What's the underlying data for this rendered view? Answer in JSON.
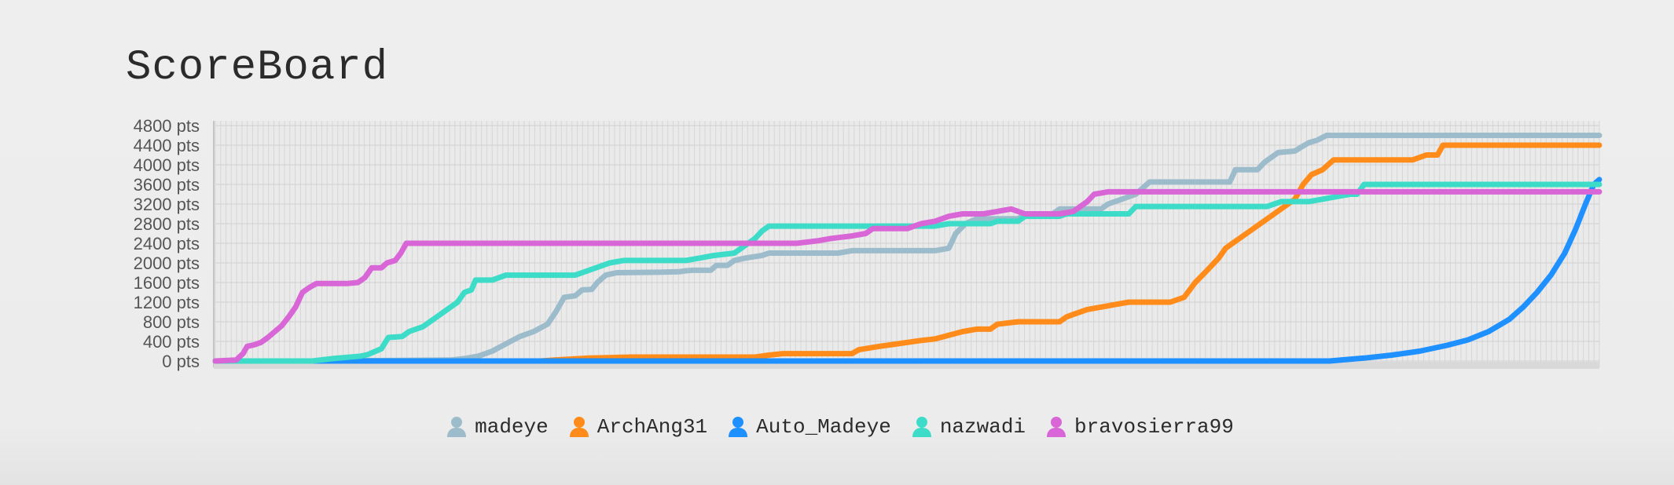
{
  "page": {
    "title": "ScoreBoard"
  },
  "chart_data": {
    "type": "line",
    "title": "ScoreBoard",
    "xlabel": "",
    "ylabel": "",
    "ylim": [
      0,
      4800
    ],
    "xlim": [
      0,
      100
    ],
    "y_ticks": [
      "0 pts",
      "400 pts",
      "800 pts",
      "1200 pts",
      "1600 pts",
      "2000 pts",
      "2400 pts",
      "2800 pts",
      "3200 pts",
      "3600 pts",
      "4000 pts",
      "4400 pts",
      "4800 pts"
    ],
    "y_tick_values": [
      0,
      400,
      800,
      1200,
      1600,
      2000,
      2400,
      2800,
      3200,
      3600,
      4000,
      4400,
      4800
    ],
    "grid": true,
    "legend_position": "bottom",
    "series": [
      {
        "name": "madeye",
        "color": "#9dbccb",
        "icon": "user-icon",
        "points": [
          [
            0,
            0
          ],
          [
            7.8,
            0
          ],
          [
            17,
            20
          ],
          [
            18,
            50
          ],
          [
            19,
            100
          ],
          [
            20,
            200
          ],
          [
            21,
            350
          ],
          [
            22,
            500
          ],
          [
            23,
            600
          ],
          [
            24,
            750
          ],
          [
            24.6,
            1000
          ],
          [
            25.2,
            1300
          ],
          [
            26,
            1330
          ],
          [
            26.5,
            1450
          ],
          [
            27.2,
            1460
          ],
          [
            27.6,
            1600
          ],
          [
            28.2,
            1750
          ],
          [
            29,
            1800
          ],
          [
            32,
            1810
          ],
          [
            33.5,
            1820
          ],
          [
            34,
            1840
          ],
          [
            34.5,
            1850
          ],
          [
            35.8,
            1850
          ],
          [
            36.2,
            1950
          ],
          [
            37,
            1950
          ],
          [
            37.5,
            2050
          ],
          [
            38.3,
            2100
          ],
          [
            39.5,
            2150
          ],
          [
            40,
            2200
          ],
          [
            45,
            2200
          ],
          [
            46,
            2250
          ],
          [
            52,
            2250
          ],
          [
            53,
            2300
          ],
          [
            53.5,
            2600
          ],
          [
            54.2,
            2800
          ],
          [
            55,
            2900
          ],
          [
            58,
            2900
          ],
          [
            58.5,
            3000
          ],
          [
            60.5,
            3000
          ],
          [
            61,
            3100
          ],
          [
            64,
            3100
          ],
          [
            64.5,
            3200
          ],
          [
            65.5,
            3300
          ],
          [
            66.5,
            3400
          ],
          [
            67.5,
            3650
          ],
          [
            70,
            3650
          ],
          [
            70.5,
            3650
          ],
          [
            73.3,
            3650
          ],
          [
            73.7,
            3900
          ],
          [
            75.3,
            3900
          ],
          [
            75.8,
            4050
          ],
          [
            76.8,
            4250
          ],
          [
            78,
            4280
          ],
          [
            78.4,
            4350
          ],
          [
            79,
            4450
          ],
          [
            79.6,
            4500
          ],
          [
            80.3,
            4600
          ],
          [
            81,
            4600
          ],
          [
            100,
            4600
          ]
        ]
      },
      {
        "name": "ArchAng31",
        "color": "#ff8c1a",
        "icon": "user-icon",
        "points": [
          [
            0,
            0
          ],
          [
            23.5,
            0
          ],
          [
            24.5,
            20
          ],
          [
            27,
            60
          ],
          [
            30,
            80
          ],
          [
            39,
            80
          ],
          [
            40,
            120
          ],
          [
            41,
            150
          ],
          [
            46,
            150
          ],
          [
            46.5,
            230
          ],
          [
            48,
            300
          ],
          [
            50,
            380
          ],
          [
            51,
            420
          ],
          [
            52,
            450
          ],
          [
            54,
            600
          ],
          [
            55,
            650
          ],
          [
            56,
            650
          ],
          [
            56.5,
            750
          ],
          [
            58,
            800
          ],
          [
            61,
            800
          ],
          [
            61.5,
            900
          ],
          [
            62,
            950
          ],
          [
            63,
            1050
          ],
          [
            64,
            1100
          ],
          [
            65,
            1150
          ],
          [
            66,
            1200
          ],
          [
            69,
            1200
          ],
          [
            70,
            1300
          ],
          [
            70.8,
            1600
          ],
          [
            71.5,
            1800
          ],
          [
            72.5,
            2100
          ],
          [
            73,
            2300
          ],
          [
            73.5,
            2400
          ],
          [
            74,
            2500
          ],
          [
            75,
            2700
          ],
          [
            76,
            2900
          ],
          [
            77,
            3100
          ],
          [
            78,
            3300
          ],
          [
            78.6,
            3600
          ],
          [
            79.2,
            3800
          ],
          [
            80,
            3900
          ],
          [
            80.4,
            4000
          ],
          [
            80.8,
            4100
          ],
          [
            83,
            4100
          ],
          [
            86.5,
            4100
          ],
          [
            87.5,
            4200
          ],
          [
            88.3,
            4200
          ],
          [
            88.7,
            4400
          ],
          [
            100,
            4400
          ]
        ]
      },
      {
        "name": "Auto_Madeye",
        "color": "#1e90ff",
        "icon": "user-icon",
        "points": [
          [
            0,
            0
          ],
          [
            80.5,
            0
          ],
          [
            83,
            60
          ],
          [
            85,
            120
          ],
          [
            87,
            200
          ],
          [
            89,
            320
          ],
          [
            90.5,
            430
          ],
          [
            92,
            600
          ],
          [
            93.5,
            850
          ],
          [
            94.5,
            1100
          ],
          [
            95.5,
            1400
          ],
          [
            96.5,
            1750
          ],
          [
            97.5,
            2200
          ],
          [
            98.3,
            2700
          ],
          [
            99,
            3200
          ],
          [
            99.6,
            3600
          ],
          [
            100,
            3700
          ]
        ]
      },
      {
        "name": "nazwadi",
        "color": "#3ddcc8",
        "icon": "user-icon",
        "points": [
          [
            0,
            0
          ],
          [
            7,
            0
          ],
          [
            8.5,
            50
          ],
          [
            10.5,
            100
          ],
          [
            11,
            130
          ],
          [
            12,
            250
          ],
          [
            12.5,
            480
          ],
          [
            13.5,
            500
          ],
          [
            14,
            600
          ],
          [
            15,
            700
          ],
          [
            15.5,
            800
          ],
          [
            16,
            900
          ],
          [
            16.5,
            1000
          ],
          [
            17,
            1100
          ],
          [
            17.5,
            1200
          ],
          [
            18,
            1400
          ],
          [
            18.5,
            1450
          ],
          [
            18.8,
            1650
          ],
          [
            20,
            1650
          ],
          [
            21,
            1750
          ],
          [
            24,
            1750
          ],
          [
            26,
            1750
          ],
          [
            28.5,
            2000
          ],
          [
            29.5,
            2050
          ],
          [
            34,
            2050
          ],
          [
            35,
            2100
          ],
          [
            36,
            2150
          ],
          [
            37.5,
            2200
          ],
          [
            38.5,
            2400
          ],
          [
            39,
            2500
          ],
          [
            39.5,
            2650
          ],
          [
            40,
            2750
          ],
          [
            45,
            2750
          ],
          [
            52,
            2750
          ],
          [
            53,
            2800
          ],
          [
            56,
            2800
          ],
          [
            56.5,
            2850
          ],
          [
            58,
            2850
          ],
          [
            58.5,
            2950
          ],
          [
            61,
            2950
          ],
          [
            61.5,
            3000
          ],
          [
            64,
            3000
          ],
          [
            64.5,
            3000
          ],
          [
            66,
            3000
          ],
          [
            66.5,
            3150
          ],
          [
            71,
            3150
          ],
          [
            72,
            3150
          ],
          [
            75,
            3150
          ],
          [
            76,
            3150
          ],
          [
            77,
            3250
          ],
          [
            79,
            3250
          ],
          [
            80,
            3300
          ],
          [
            81,
            3350
          ],
          [
            82,
            3400
          ],
          [
            82.5,
            3400
          ],
          [
            83,
            3600
          ],
          [
            100,
            3600
          ]
        ]
      },
      {
        "name": "bravosierra99",
        "color": "#d966d6",
        "icon": "user-icon",
        "points": [
          [
            0,
            0
          ],
          [
            1.5,
            20
          ],
          [
            2,
            150
          ],
          [
            2.3,
            300
          ],
          [
            2.8,
            330
          ],
          [
            3.3,
            380
          ],
          [
            3.8,
            480
          ],
          [
            4.3,
            600
          ],
          [
            4.8,
            720
          ],
          [
            5.3,
            900
          ],
          [
            5.8,
            1100
          ],
          [
            6.3,
            1400
          ],
          [
            6.8,
            1500
          ],
          [
            7.3,
            1580
          ],
          [
            9.5,
            1580
          ],
          [
            10.3,
            1600
          ],
          [
            10.8,
            1700
          ],
          [
            11.3,
            1900
          ],
          [
            12,
            1900
          ],
          [
            12.4,
            2000
          ],
          [
            13,
            2050
          ],
          [
            13.4,
            2200
          ],
          [
            13.8,
            2400
          ],
          [
            40,
            2400
          ],
          [
            42,
            2400
          ],
          [
            43.5,
            2450
          ],
          [
            44.5,
            2500
          ],
          [
            46,
            2550
          ],
          [
            47,
            2600
          ],
          [
            47.5,
            2700
          ],
          [
            49,
            2700
          ],
          [
            50,
            2700
          ],
          [
            50.5,
            2750
          ],
          [
            51,
            2800
          ],
          [
            52,
            2850
          ],
          [
            53,
            2950
          ],
          [
            54,
            3000
          ],
          [
            55.5,
            3000
          ],
          [
            56.5,
            3050
          ],
          [
            57.5,
            3100
          ],
          [
            58.5,
            3000
          ],
          [
            61,
            3000
          ],
          [
            62,
            3050
          ],
          [
            62.5,
            3150
          ],
          [
            63,
            3250
          ],
          [
            63.5,
            3400
          ],
          [
            64.5,
            3450
          ],
          [
            100,
            3450
          ]
        ]
      }
    ]
  }
}
